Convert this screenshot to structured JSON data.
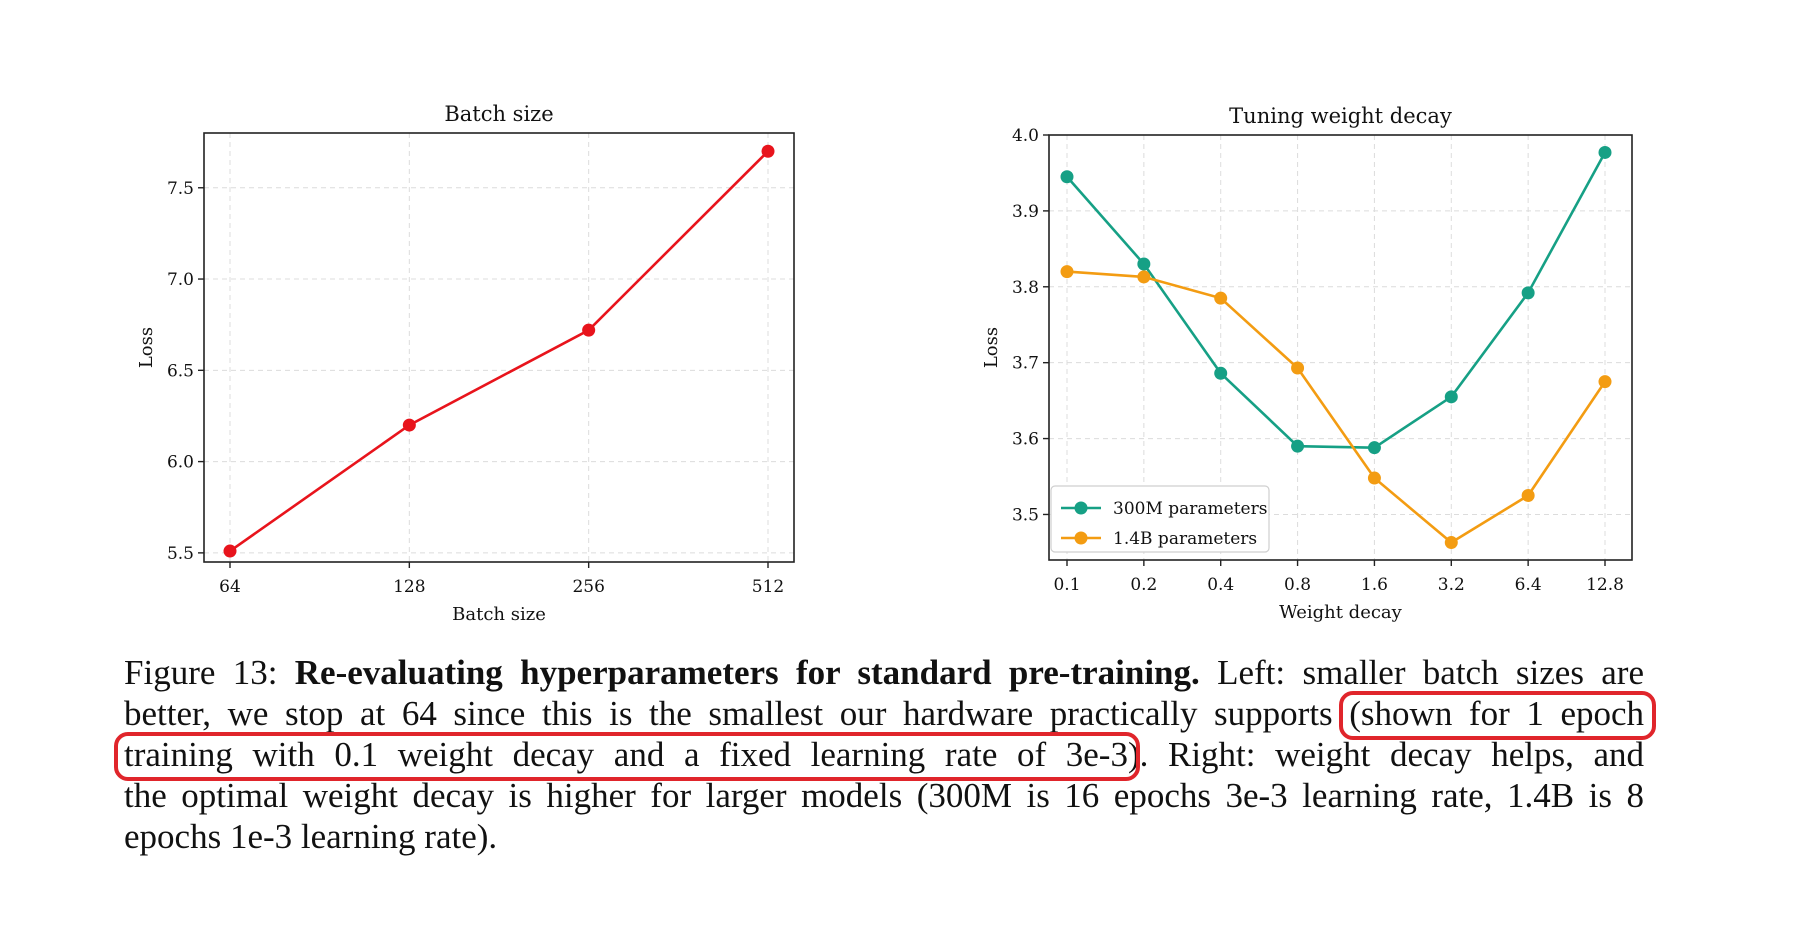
{
  "chart_data": [
    {
      "type": "line",
      "title": "Batch size",
      "xlabel": "Batch size",
      "ylabel": "Loss",
      "categories": [
        "64",
        "128",
        "256",
        "512"
      ],
      "x_scale": "log2",
      "ylim": [
        5.45,
        7.8
      ],
      "yticks": [
        "5.5",
        "6.0",
        "6.5",
        "7.0",
        "7.5"
      ],
      "grid": true,
      "series": [
        {
          "name": "Loss",
          "color": "#e8141c",
          "values": [
            5.51,
            6.2,
            6.72,
            7.7
          ]
        }
      ]
    },
    {
      "type": "line",
      "title": "Tuning weight decay",
      "xlabel": "Weight decay",
      "ylabel": "Loss",
      "categories": [
        "0.1",
        "0.2",
        "0.4",
        "0.8",
        "1.6",
        "3.2",
        "6.4",
        "12.8"
      ],
      "x_scale": "log2",
      "ylim": [
        3.44,
        4.0
      ],
      "yticks": [
        "3.5",
        "3.6",
        "3.7",
        "3.8",
        "3.9",
        "4.0"
      ],
      "grid": true,
      "legend": "lower-left",
      "series": [
        {
          "name": "300M parameters",
          "color": "#16a085",
          "values": [
            3.945,
            3.83,
            3.686,
            3.59,
            3.588,
            3.655,
            3.792,
            3.977
          ]
        },
        {
          "name": "1.4B parameters",
          "color": "#f39c12",
          "values": [
            3.82,
            3.813,
            3.785,
            3.693,
            3.548,
            3.463,
            3.525,
            3.675
          ]
        }
      ]
    }
  ],
  "caption": {
    "figure_label": "Figure 13:",
    "bold_title": "Re-evaluating hyperparameters for standard pre-training.",
    "line1_rest": "Left: smaller batch sizes are",
    "line2_a": "better, we stop at 64 since this is the smallest our hardware practically supports",
    "line2_b": "(shown for 1 epoch",
    "line3_a": "training with 0.1 weight decay and a fixed learning rate of 3e-3",
    "line3_b": "). Right: weight decay helps, and",
    "line4": "the optimal weight decay is higher for larger models (300M is 16 epochs 3e-3 learning rate, 1.4B is 8",
    "line5": "epochs 1e-3 learning rate)."
  },
  "annotation_color": "#e0252b"
}
